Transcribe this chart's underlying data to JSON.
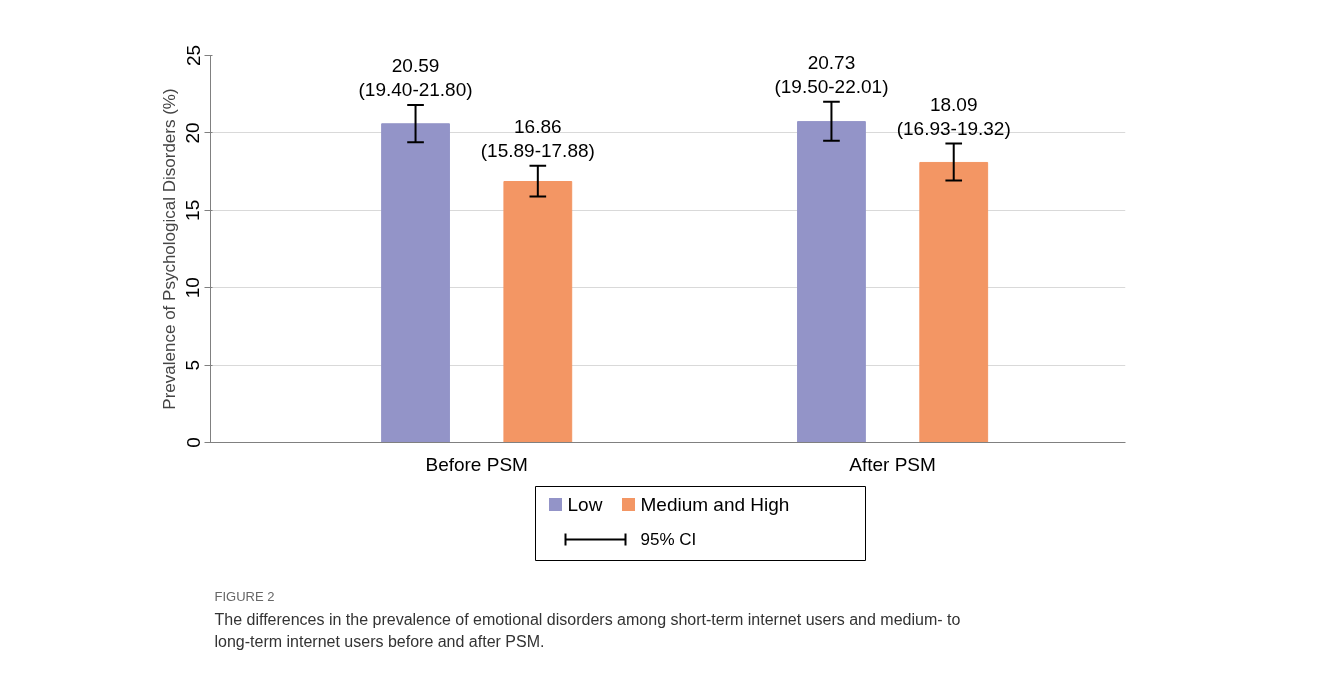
{
  "chart_data": {
    "type": "bar",
    "ylabel": "Prevalence of Psychological Disorders (%)",
    "categories": [
      "Before PSM",
      "After PSM"
    ],
    "series": [
      {
        "name": "Low",
        "color": "#9394c8",
        "values": [
          20.59,
          20.73
        ],
        "errors": [
          [
            19.4,
            21.8
          ],
          [
            19.5,
            22.01
          ]
        ],
        "value_labels": [
          "20.59\n(19.40-21.80)",
          "20.73\n(19.50-22.01)"
        ]
      },
      {
        "name": "Medium and High",
        "color": "#f39664",
        "values": [
          16.86,
          18.09
        ],
        "errors": [
          [
            15.89,
            17.88
          ],
          [
            16.93,
            19.32
          ]
        ],
        "value_labels": [
          "16.86\n(15.89-17.88)",
          "18.09\n(16.93-19.32)"
        ]
      }
    ],
    "ylim": [
      0,
      25
    ],
    "yticks": [
      0,
      5,
      10,
      15,
      20,
      25
    ],
    "grid": "y",
    "legend": "bottom",
    "annotations": [
      "95% CI",
      "FIGURE 2",
      "The differences in the prevalence of emotional disorders among short-term internet users and medium- to long-term internet users before and after PSM."
    ]
  }
}
